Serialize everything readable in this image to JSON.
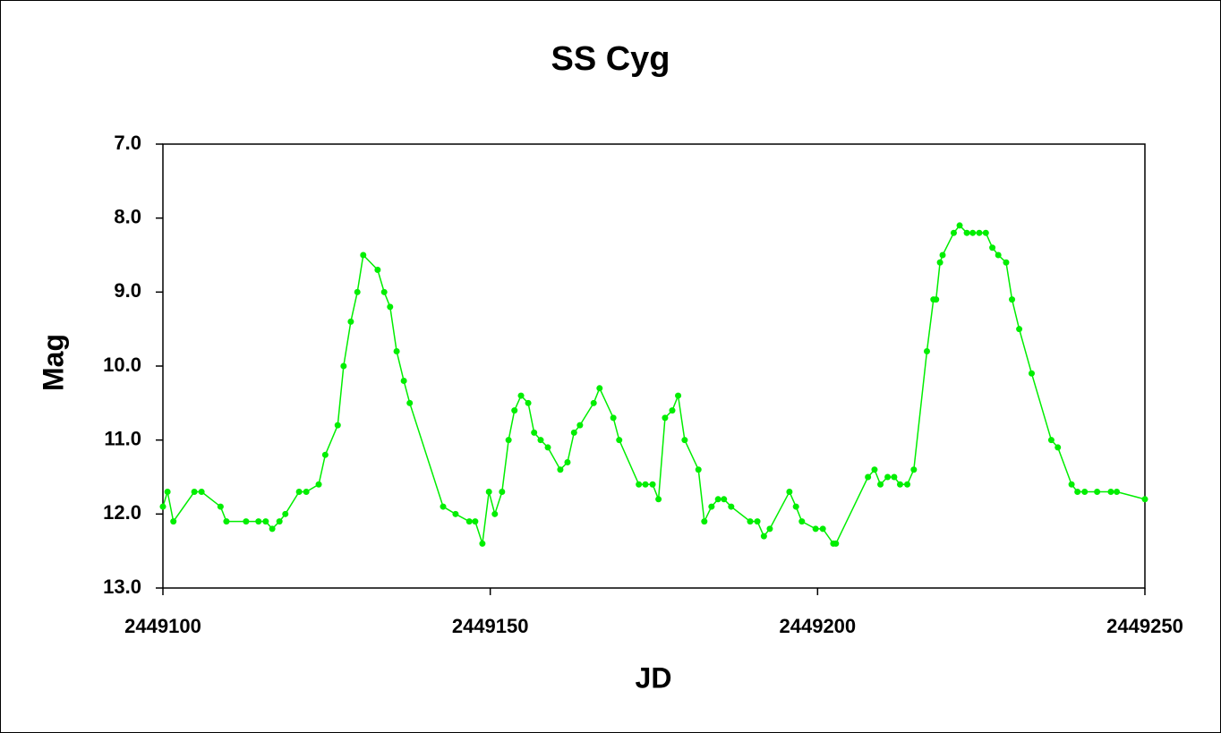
{
  "chart_data": {
    "type": "line",
    "title": "SS Cyg",
    "x_label": "JD",
    "y_label": "Mag",
    "x": [
      2449100,
      2449100.7,
      2449101.6,
      2449104.8,
      2449105.9,
      2449108.8,
      2449109.7,
      2449112.7,
      2449114.6,
      2449115.7,
      2449116.7,
      2449117.8,
      2449118.7,
      2449120.8,
      2449121.9,
      2449123.8,
      2449124.8,
      2449126.7,
      2449127.6,
      2449128.7,
      2449129.7,
      2449130.6,
      2449132.8,
      2449133.8,
      2449134.7,
      2449135.7,
      2449136.8,
      2449137.7,
      2449142.8,
      2449144.7,
      2449146.8,
      2449147.7,
      2449148.8,
      2449149.8,
      2449150.7,
      2449151.8,
      2449152.8,
      2449153.7,
      2449154.7,
      2449155.8,
      2449156.7,
      2449157.7,
      2449158.8,
      2449160.7,
      2449161.8,
      2449162.8,
      2449163.7,
      2449165.8,
      2449166.7,
      2449168.8,
      2449169.7,
      2449172.7,
      2449173.7,
      2449174.8,
      2449175.7,
      2449176.7,
      2449177.8,
      2449178.7,
      2449179.7,
      2449181.8,
      2449182.7,
      2449183.8,
      2449184.8,
      2449185.7,
      2449186.8,
      2449189.7,
      2449190.8,
      2449191.8,
      2449192.7,
      2449195.7,
      2449196.7,
      2449197.6,
      2449199.7,
      2449200.8,
      2449202.4,
      2449202.8,
      2449207.7,
      2449208.7,
      2449209.6,
      2449210.7,
      2449211.7,
      2449212.6,
      2449213.7,
      2449214.7,
      2449216.7,
      2449217.7,
      2449218.1,
      2449218.7,
      2449219.1,
      2449220.8,
      2449221.7,
      2449222.8,
      2449223.7,
      2449224.7,
      2449225.7,
      2449226.7,
      2449227.6,
      2449228.8,
      2449229.7,
      2449230.8,
      2449232.7,
      2449235.7,
      2449236.7,
      2449238.8,
      2449239.7,
      2449240.8,
      2449242.7,
      2449244.8,
      2449245.7,
      2449250
    ],
    "values": [
      11.9,
      11.7,
      12.1,
      11.7,
      11.7,
      11.9,
      12.1,
      12.1,
      12.1,
      12.1,
      12.2,
      12.1,
      12,
      11.7,
      11.7,
      11.6,
      11.2,
      10.8,
      10,
      9.4,
      9,
      8.5,
      8.7,
      9,
      9.2,
      9.8,
      10.2,
      10.5,
      11.9,
      12,
      12.1,
      12.1,
      12.4,
      11.7,
      12,
      11.7,
      11,
      10.6,
      10.4,
      10.5,
      10.9,
      11,
      11.1,
      11.4,
      11.3,
      10.9,
      10.8,
      10.5,
      10.3,
      10.7,
      11,
      11.6,
      11.6,
      11.6,
      11.8,
      10.7,
      10.6,
      10.4,
      11,
      11.4,
      12.1,
      11.9,
      11.8,
      11.8,
      11.9,
      12.1,
      12.1,
      12.3,
      12.2,
      11.7,
      11.9,
      12.1,
      12.2,
      12.2,
      12.4,
      12.4,
      11.5,
      11.4,
      11.6,
      11.5,
      11.5,
      11.6,
      11.6,
      11.4,
      9.8,
      9.1,
      9.1,
      8.6,
      8.5,
      8.2,
      8.1,
      8.2,
      8.2,
      8.2,
      8.2,
      8.4,
      8.5,
      8.6,
      9.1,
      9.5,
      10.1,
      11,
      11.1,
      11.6,
      11.7,
      11.7,
      11.7,
      11.7,
      11.7,
      11.8
    ],
    "color": "#00ee00",
    "markers": true,
    "xlim": [
      2449100,
      2449250
    ],
    "xticks": [
      2449100,
      2449150,
      2449200,
      2449250
    ],
    "ylim": [
      7,
      13
    ],
    "y_inverted": true,
    "yticks": [
      {
        "value": 7,
        "label": "7.0"
      },
      {
        "value": 8,
        "label": "8.0"
      },
      {
        "value": 9,
        "label": "9.0"
      },
      {
        "value": 10,
        "label": "10.0"
      },
      {
        "value": 11,
        "label": "11.0"
      },
      {
        "value": 12,
        "label": "12.0"
      },
      {
        "value": 13,
        "label": "13.0"
      }
    ],
    "grid": false
  }
}
